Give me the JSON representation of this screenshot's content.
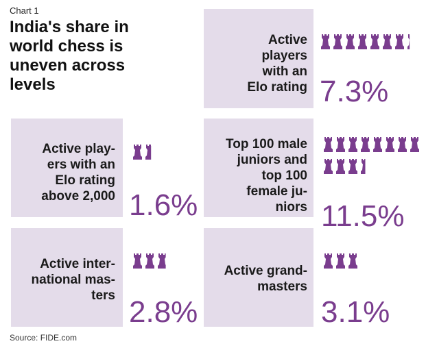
{
  "chart_label": "Chart 1",
  "title": "India's share in world chess is uneven across levels",
  "source": "Source: FIDE.com",
  "colors": {
    "panel": "#e4dcea",
    "accent": "#7a3d8e",
    "text": "#1a1a1a"
  },
  "chart_data": {
    "type": "pictogram",
    "unit": "%",
    "icon": "chess-pawn-icon",
    "icon_value": 1,
    "items": [
      {
        "label_lines": [
          "Active",
          "players",
          "with an",
          "Elo rating"
        ],
        "value": 7.3,
        "value_label": "7.3%"
      },
      {
        "label_lines": [
          "Active play-",
          "ers with an",
          "Elo rating",
          "above 2,000"
        ],
        "value": 1.6,
        "value_label": "1.6%"
      },
      {
        "label_lines": [
          "Top 100 male",
          "juniors and",
          "top 100",
          "female ju-",
          "niors"
        ],
        "value": 11.5,
        "value_label": "11.5%"
      },
      {
        "label_lines": [
          "Active inter-",
          "national mas-",
          "ters"
        ],
        "value": 2.8,
        "value_label": "2.8%"
      },
      {
        "label_lines": [
          "Active grand-",
          "masters"
        ],
        "value": 3.1,
        "value_label": "3.1%"
      }
    ]
  }
}
